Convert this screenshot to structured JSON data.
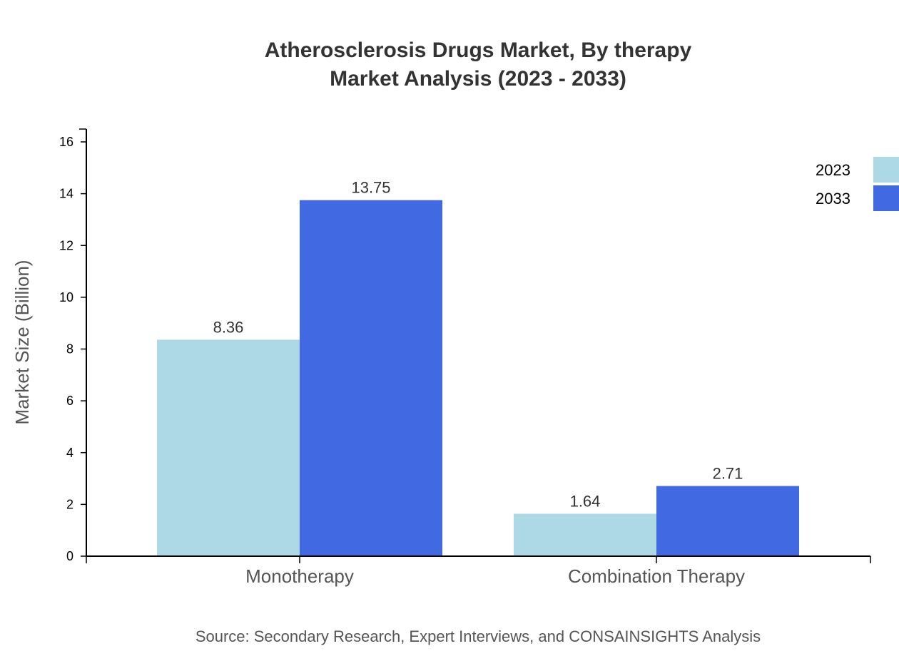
{
  "chart_data": {
    "type": "bar",
    "title": [
      "Atherosclerosis Drugs Market, By therapy",
      "Market Analysis (2023 - 2033)"
    ],
    "xlabel": "",
    "ylabel": "Market Size (Billion)",
    "categories": [
      "Monotherapy",
      "Combination Therapy"
    ],
    "series": [
      {
        "name": "2023",
        "values": [
          8.36,
          1.64
        ],
        "color": "#ADD8E6"
      },
      {
        "name": "2033",
        "values": [
          13.75,
          2.71
        ],
        "color": "#4169E1"
      }
    ],
    "ylim": [
      0,
      16.5
    ],
    "yticks": [
      0,
      2,
      4,
      6,
      8,
      10,
      12,
      14,
      16
    ],
    "grid": false,
    "legend": "top-right",
    "source": "Source: Secondary Research, Expert Interviews, and CONSAINSIGHTS Analysis"
  }
}
